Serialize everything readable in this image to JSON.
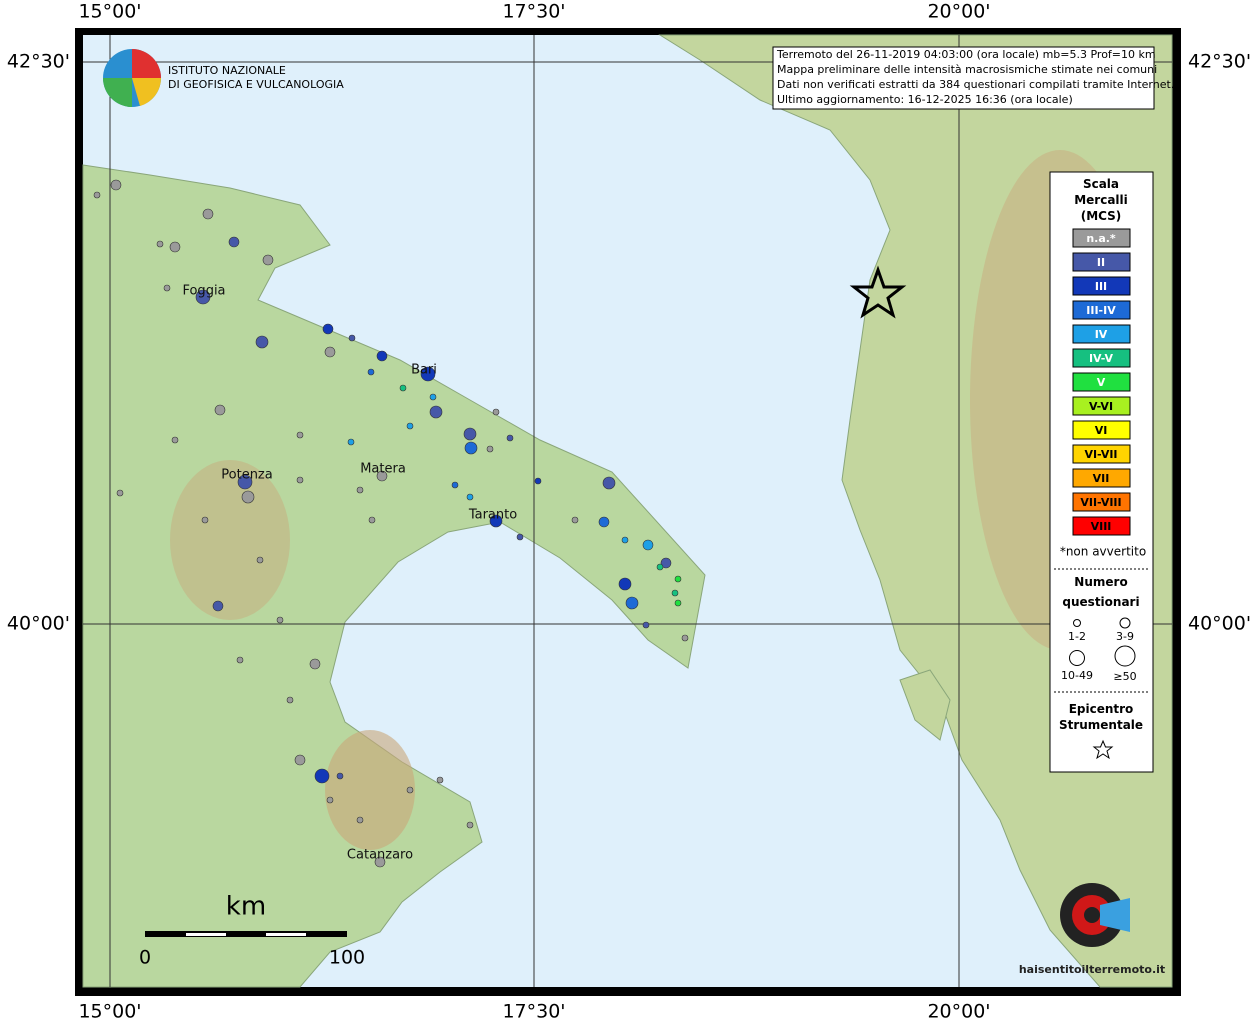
{
  "header": {
    "info": [
      "Terremoto del 26-11-2019 04:03:00 (ora locale) mb=5.3 Prof=10 km",
      "Mappa preliminare delle intensità macrosismiche stimate nei comuni",
      "Dati non verificati estratti da 384 questionari compilati tramite Internet.",
      "Ultimo aggiornamento: 16-12-2025 16:36 (ora locale)"
    ]
  },
  "logo": {
    "lines": [
      "ISTITUTO NAZIONALE",
      "DI GEOFISICA E VULCANOLOGIA"
    ]
  },
  "graticule": {
    "lon": [
      "15°00'",
      "17°30'",
      "20°00'"
    ],
    "lat": [
      "42°30'",
      "40°00'"
    ]
  },
  "cities": [
    "Foggia",
    "Bari",
    "Matera",
    "Potenza",
    "Taranto",
    "Catanzaro"
  ],
  "legend": {
    "title": "Scala Mercalli (MCS)",
    "classes": [
      {
        "label": "n.a.*",
        "color": "#9a9a9a"
      },
      {
        "label": "II",
        "color": "#4658a8"
      },
      {
        "label": "III",
        "color": "#1238b8"
      },
      {
        "label": "III-IV",
        "color": "#1d6ad6"
      },
      {
        "label": "IV",
        "color": "#1ea0e6"
      },
      {
        "label": "IV-V",
        "color": "#16c080"
      },
      {
        "label": "V",
        "color": "#20e040"
      },
      {
        "label": "V-VI",
        "color": "#a8f020"
      },
      {
        "label": "VI",
        "color": "#ffff00"
      },
      {
        "label": "VI-VII",
        "color": "#ffd400"
      },
      {
        "label": "VII",
        "color": "#ffa800"
      },
      {
        "label": "VII-VIII",
        "color": "#ff7400"
      },
      {
        "label": "VIII",
        "color": "#ff0000"
      }
    ],
    "note": "*non avvertito",
    "size_title": "Numero questionari",
    "sizes": [
      "1-2",
      "3-9",
      "10-49",
      "≥50"
    ],
    "epicenter": "Epicentro Strumentale"
  },
  "scale_bar": {
    "unit": "km",
    "ticks": [
      "0",
      "100"
    ]
  },
  "badge": "haisentitoilterremoto.it"
}
